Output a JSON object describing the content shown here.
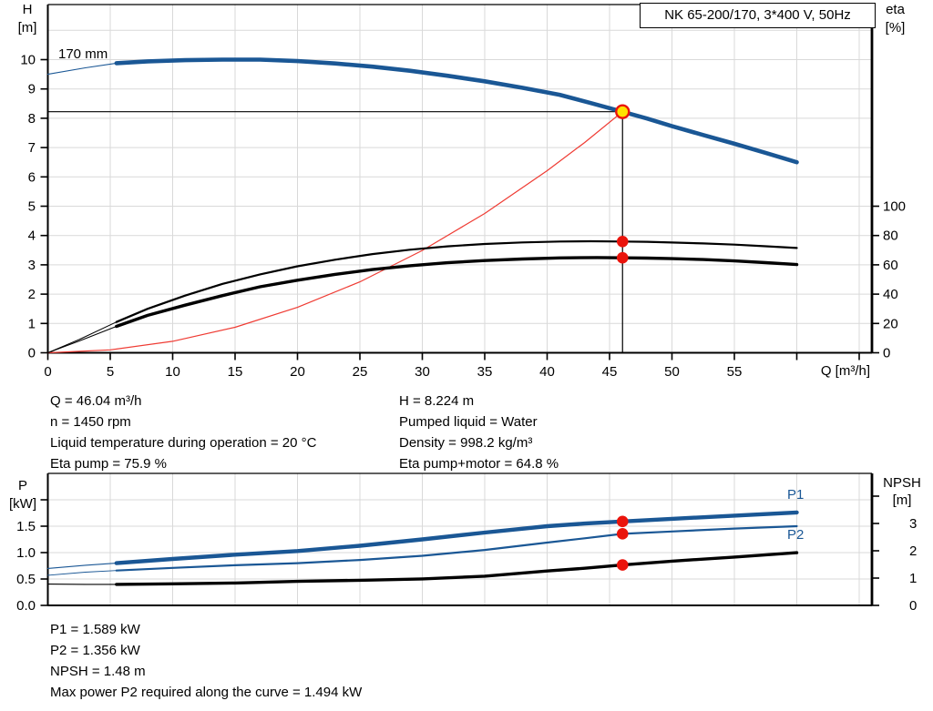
{
  "header": {
    "title": "NK 65-200/170, 3*400 V, 50Hz"
  },
  "colors": {
    "curve_blue": "#1a5795",
    "curve_black": "#000000",
    "system_red": "#ef3b33",
    "marker_red": "#ea140c",
    "marker_yellow": "#ffe100",
    "grid": "#d9d9d9",
    "axis": "#000000",
    "text": "#000000"
  },
  "top_chart": {
    "y_left_label_line1": "H",
    "y_left_label_line2": "[m]",
    "y_right_label_line1": "eta",
    "y_right_label_line2": "[%]",
    "x_label": "Q [m³/h]",
    "impeller_label": "170 mm"
  },
  "bottom_chart": {
    "y_left_label_line1": "P",
    "y_left_label_line2": "[kW]",
    "y_right_label_line1": "NPSH",
    "y_right_label_line2": "[m]",
    "p1_label": "P1",
    "p2_label": "P2"
  },
  "op_info": {
    "left": [
      "Q = 46.04 m³/h",
      "n = 1450 rpm",
      "Liquid temperature during operation = 20 °C",
      "Eta pump = 75.9 %"
    ],
    "right": [
      "H = 8.224 m",
      "Pumped liquid = Water",
      "Density = 998.2 kg/m³",
      "Eta pump+motor = 64.8 %"
    ]
  },
  "power_info": [
    "P1 = 1.589 kW",
    "P2 = 1.356 kW",
    "NPSH = 1.48 m",
    "Max power P2 required along the curve = 1.494 kW"
  ],
  "chart_data": [
    {
      "type": "line",
      "title": "NK 65-200/170, 3*400 V, 50Hz",
      "xlabel": "Q [m³/h]",
      "ylabel_left": "H [m]",
      "ylabel_right": "eta [%]",
      "xlim": [
        0,
        66
      ],
      "ylim_left": [
        0,
        11.9
      ],
      "ylim_right_eta": [
        0,
        238
      ],
      "grid": true,
      "x_grid": [
        5,
        10,
        15,
        20,
        25,
        30,
        35,
        40,
        45,
        50,
        55,
        60,
        65
      ],
      "y_grid": [
        1,
        2,
        3,
        4,
        5,
        6,
        7,
        8,
        9,
        10,
        11
      ],
      "x_ticks": [
        {
          "v": 0,
          "label": "0"
        },
        {
          "v": 5,
          "label": "5"
        },
        {
          "v": 10,
          "label": "10"
        },
        {
          "v": 15,
          "label": "15"
        },
        {
          "v": 20,
          "label": "20"
        },
        {
          "v": 25,
          "label": "25"
        },
        {
          "v": 30,
          "label": "30"
        },
        {
          "v": 35,
          "label": "35"
        },
        {
          "v": 40,
          "label": "40"
        },
        {
          "v": 45,
          "label": "45"
        },
        {
          "v": 50,
          "label": "50"
        },
        {
          "v": 55,
          "label": "55"
        },
        {
          "v": 60,
          "label": ""
        },
        {
          "v": 65,
          "label": ""
        }
      ],
      "y_ticks": [
        {
          "v": 0,
          "label": "0"
        },
        {
          "v": 1,
          "label": "1"
        },
        {
          "v": 2,
          "label": "2"
        },
        {
          "v": 3,
          "label": "3"
        },
        {
          "v": 4,
          "label": "4"
        },
        {
          "v": 5,
          "label": "5"
        },
        {
          "v": 6,
          "label": "6"
        },
        {
          "v": 7,
          "label": "7"
        },
        {
          "v": 8,
          "label": "8"
        },
        {
          "v": 9,
          "label": "9"
        },
        {
          "v": 10,
          "label": "10"
        }
      ],
      "eta_ticks": [
        {
          "v": 0,
          "label": "0"
        },
        {
          "v": 20,
          "label": "20"
        },
        {
          "v": 40,
          "label": "40"
        },
        {
          "v": 60,
          "label": "60"
        },
        {
          "v": 80,
          "label": "80"
        },
        {
          "v": 100,
          "label": "100"
        }
      ],
      "crosshair": {
        "q": 46.04,
        "h": 8.224
      },
      "series": [
        {
          "name": "system-curve",
          "axis": "H",
          "color": "#ef3b33",
          "segments": [
            {
              "width": 1.2,
              "points": [
                [
                  0,
                  0
                ],
                [
                  5,
                  0.1
                ],
                [
                  10,
                  0.39
                ],
                [
                  15,
                  0.87
                ],
                [
                  20,
                  1.55
                ],
                [
                  25,
                  2.42
                ],
                [
                  30,
                  3.49
                ],
                [
                  35,
                  4.75
                ],
                [
                  40,
                  6.21
                ],
                [
                  43,
                  7.17
                ],
                [
                  46.04,
                  8.224
                ]
              ]
            }
          ]
        },
        {
          "name": "eta-pump-curve",
          "axis": "eta",
          "color": "#000000",
          "segments": [
            {
              "width": 1.0,
              "points": [
                [
                  0,
                  0
                ],
                [
                  2.5,
                  9
                ],
                [
                  5.5,
                  21
                ]
              ]
            },
            {
              "width": 2.2,
              "points": [
                [
                  5.5,
                  21
                ],
                [
                  8,
                  30
                ],
                [
                  11,
                  39
                ],
                [
                  14,
                  47
                ],
                [
                  17,
                  53.5
                ],
                [
                  20,
                  59
                ],
                [
                  23,
                  63.5
                ],
                [
                  26,
                  67.3
                ],
                [
                  29,
                  70.3
                ],
                [
                  32,
                  72.6
                ],
                [
                  35,
                  74.2
                ],
                [
                  38,
                  75.3
                ],
                [
                  41,
                  75.9
                ],
                [
                  43.5,
                  76.1
                ],
                [
                  46.04,
                  75.9
                ],
                [
                  48,
                  75.7
                ],
                [
                  50,
                  75.2
                ],
                [
                  52.5,
                  74.6
                ],
                [
                  55,
                  73.8
                ],
                [
                  57.5,
                  72.7
                ],
                [
                  60,
                  71.5
                ]
              ]
            }
          ]
        },
        {
          "name": "eta-pump-motor-curve",
          "axis": "eta",
          "color": "#000000",
          "segments": [
            {
              "width": 1.0,
              "points": [
                [
                  0,
                  0
                ],
                [
                  2.5,
                  8
                ],
                [
                  5.5,
                  18
                ]
              ]
            },
            {
              "width": 3.4,
              "points": [
                [
                  5.5,
                  18
                ],
                [
                  8,
                  25.5
                ],
                [
                  11,
                  32.5
                ],
                [
                  14,
                  39
                ],
                [
                  17,
                  45
                ],
                [
                  20,
                  49.5
                ],
                [
                  23,
                  53.5
                ],
                [
                  26,
                  56.8
                ],
                [
                  29,
                  59.4
                ],
                [
                  32,
                  61.4
                ],
                [
                  35,
                  62.9
                ],
                [
                  38,
                  64
                ],
                [
                  41,
                  64.7
                ],
                [
                  44,
                  65
                ],
                [
                  46.04,
                  64.8
                ],
                [
                  48,
                  64.6
                ],
                [
                  50,
                  64.2
                ],
                [
                  52.5,
                  63.6
                ],
                [
                  55,
                  62.7
                ],
                [
                  57.5,
                  61.5
                ],
                [
                  60,
                  60.2
                ]
              ]
            }
          ]
        },
        {
          "name": "head-curve-170mm",
          "axis": "H",
          "color": "#1a5795",
          "segments": [
            {
              "width": 1.1,
              "points": [
                [
                  0,
                  9.5
                ],
                [
                  3,
                  9.72
                ],
                [
                  5.5,
                  9.88
                ]
              ]
            },
            {
              "width": 4.6,
              "points": [
                [
                  5.5,
                  9.88
                ],
                [
                  8,
                  9.94
                ],
                [
                  11,
                  9.98
                ],
                [
                  14,
                  10.0
                ],
                [
                  17,
                  10.0
                ],
                [
                  20,
                  9.95
                ],
                [
                  23,
                  9.87
                ],
                [
                  26,
                  9.76
                ],
                [
                  29,
                  9.62
                ],
                [
                  32,
                  9.45
                ],
                [
                  35,
                  9.26
                ],
                [
                  38,
                  9.04
                ],
                [
                  41,
                  8.8
                ],
                [
                  43.5,
                  8.52
                ],
                [
                  46.04,
                  8.224
                ],
                [
                  48,
                  7.99
                ],
                [
                  50,
                  7.73
                ],
                [
                  52.5,
                  7.43
                ],
                [
                  55,
                  7.13
                ],
                [
                  57.5,
                  6.82
                ],
                [
                  60,
                  6.5
                ]
              ]
            }
          ]
        }
      ],
      "markers": [
        {
          "q": 46.04,
          "v": 75.9,
          "axis": "eta",
          "style": "red",
          "name": "eta-pump-point"
        },
        {
          "q": 46.04,
          "v": 64.8,
          "axis": "eta",
          "style": "red",
          "name": "eta-pump-motor-point"
        },
        {
          "q": 46.04,
          "v": 8.224,
          "axis": "H",
          "style": "duty",
          "name": "duty-point"
        }
      ]
    },
    {
      "type": "line",
      "xlabel": "Q [m³/h]",
      "ylabel_left": "P [kW]",
      "ylabel_right": "NPSH [m]",
      "xlim": [
        0,
        66
      ],
      "ylim_left_p": [
        0,
        2.5
      ],
      "ylim_right_npsh": [
        0,
        4.83
      ],
      "grid": true,
      "x_grid": [
        5,
        10,
        15,
        20,
        25,
        30,
        35,
        40,
        45,
        50,
        55,
        60,
        65
      ],
      "p_grid": [
        0.5,
        1,
        1.5,
        2
      ],
      "p_ticks": [
        {
          "v": 0,
          "label": "0.0"
        },
        {
          "v": 0.5,
          "label": "0.5"
        },
        {
          "v": 1,
          "label": "1.0"
        },
        {
          "v": 1.5,
          "label": "1.5"
        },
        {
          "v": 2,
          "label": ""
        }
      ],
      "npsh_ticks": [
        {
          "v": 0,
          "label": "0"
        },
        {
          "v": 1,
          "label": "1"
        },
        {
          "v": 2,
          "label": "2"
        },
        {
          "v": 3,
          "label": "3"
        },
        {
          "v": 4,
          "label": ""
        }
      ],
      "series": [
        {
          "name": "npsh-curve",
          "axis": "NPSH",
          "color": "#000000",
          "segments": [
            {
              "width": 1.1,
              "points": [
                [
                  0,
                  0.78
                ],
                [
                  3,
                  0.77
                ],
                [
                  5.5,
                  0.77
                ]
              ]
            },
            {
              "width": 3.4,
              "points": [
                [
                  5.5,
                  0.77
                ],
                [
                  10,
                  0.79
                ],
                [
                  15,
                  0.82
                ],
                [
                  20,
                  0.88
                ],
                [
                  25,
                  0.92
                ],
                [
                  30,
                  0.97
                ],
                [
                  35,
                  1.07
                ],
                [
                  40,
                  1.26
                ],
                [
                  43,
                  1.36
                ],
                [
                  46.04,
                  1.48
                ],
                [
                  50,
                  1.62
                ],
                [
                  55,
                  1.77
                ],
                [
                  60,
                  1.93
                ]
              ]
            }
          ]
        },
        {
          "name": "p2-curve",
          "axis": "P",
          "color": "#1a5795",
          "segments": [
            {
              "width": 0.9,
              "points": [
                [
                  0,
                  0.57
                ],
                [
                  3,
                  0.63
                ],
                [
                  5.5,
                  0.66
                ]
              ]
            },
            {
              "width": 2.2,
              "points": [
                [
                  5.5,
                  0.66
                ],
                [
                  10,
                  0.71
                ],
                [
                  15,
                  0.76
                ],
                [
                  20,
                  0.8
                ],
                [
                  25,
                  0.86
                ],
                [
                  30,
                  0.94
                ],
                [
                  35,
                  1.05
                ],
                [
                  40,
                  1.19
                ],
                [
                  43,
                  1.27
                ],
                [
                  46.04,
                  1.356
                ],
                [
                  50,
                  1.4
                ],
                [
                  55,
                  1.455
                ],
                [
                  60,
                  1.5
                ]
              ]
            }
          ]
        },
        {
          "name": "p1-curve",
          "axis": "P",
          "color": "#1a5795",
          "segments": [
            {
              "width": 1.1,
              "points": [
                [
                  0,
                  0.7
                ],
                [
                  3,
                  0.76
                ],
                [
                  5.5,
                  0.8
                ]
              ]
            },
            {
              "width": 4.4,
              "points": [
                [
                  5.5,
                  0.8
                ],
                [
                  10,
                  0.88
                ],
                [
                  15,
                  0.96
                ],
                [
                  20,
                  1.03
                ],
                [
                  25,
                  1.13
                ],
                [
                  30,
                  1.25
                ],
                [
                  35,
                  1.38
                ],
                [
                  40,
                  1.5
                ],
                [
                  43,
                  1.55
                ],
                [
                  46.04,
                  1.589
                ],
                [
                  50,
                  1.64
                ],
                [
                  55,
                  1.7
                ],
                [
                  60,
                  1.76
                ]
              ]
            }
          ]
        }
      ],
      "markers": [
        {
          "q": 46.04,
          "v": 1.589,
          "axis": "P",
          "style": "red",
          "name": "p1-point"
        },
        {
          "q": 46.04,
          "v": 1.356,
          "axis": "P",
          "style": "red",
          "name": "p2-point"
        },
        {
          "q": 46.04,
          "v": 1.48,
          "axis": "NPSH",
          "style": "red",
          "name": "npsh-point"
        }
      ]
    }
  ]
}
